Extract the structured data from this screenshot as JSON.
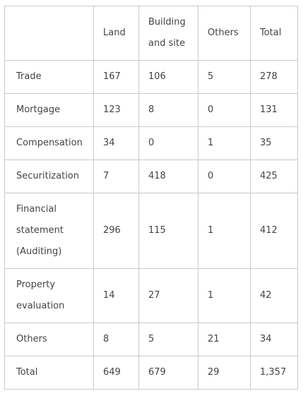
{
  "table": {
    "headers": [
      "",
      "Land",
      "Building and site",
      "Others",
      "Total"
    ],
    "rows": [
      {
        "label": "Trade",
        "values": [
          "167",
          "106",
          "5",
          "278"
        ]
      },
      {
        "label": "Mortgage",
        "values": [
          "123",
          "8",
          "0",
          "131"
        ]
      },
      {
        "label": "Compensation",
        "values": [
          "34",
          "0",
          "1",
          "35"
        ]
      },
      {
        "label": "Securitization",
        "values": [
          "7",
          "418",
          "0",
          "425"
        ]
      },
      {
        "label": "Financial statement (Auditing)",
        "values": [
          "296",
          "115",
          "1",
          "412"
        ]
      },
      {
        "label": "Property evaluation",
        "values": [
          "14",
          "27",
          "1",
          "42"
        ]
      },
      {
        "label": "Others",
        "values": [
          "8",
          "5",
          "21",
          "34"
        ]
      },
      {
        "label": "Total",
        "values": [
          "649",
          "679",
          "29",
          "1,357"
        ]
      }
    ]
  },
  "colors": {
    "border": "#c9c9c9",
    "text": "#444444",
    "background": "#ffffff"
  }
}
